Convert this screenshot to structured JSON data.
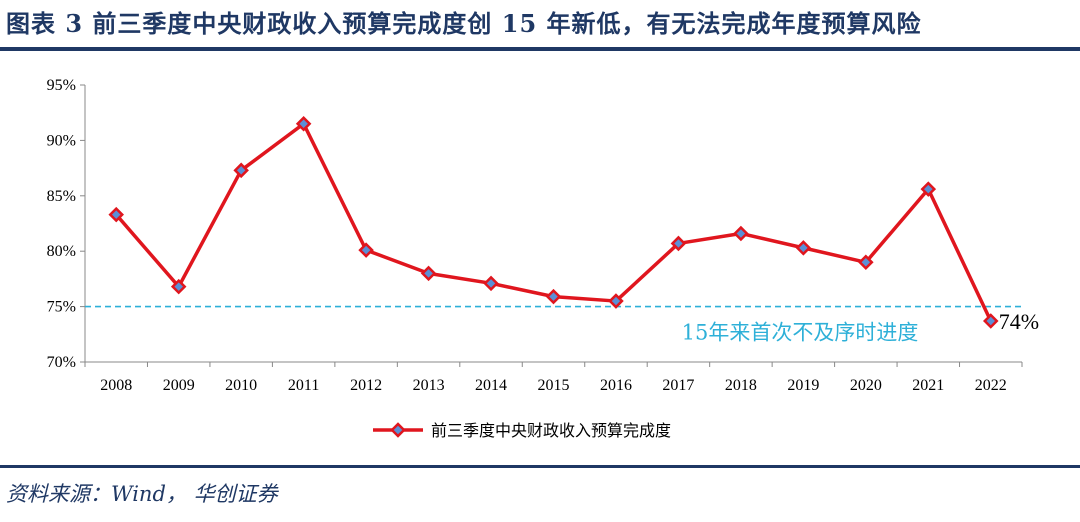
{
  "header": {
    "title": "图表 3   前三季度中央财政收入预算完成度创 15 年新低，有无法完成年度预算风险"
  },
  "footer": {
    "source": "资料来源：Wind， 华创证券"
  },
  "chart_data": {
    "type": "line",
    "categories": [
      "2008",
      "2009",
      "2010",
      "2011",
      "2012",
      "2013",
      "2014",
      "2015",
      "2016",
      "2017",
      "2018",
      "2019",
      "2020",
      "2021",
      "2022"
    ],
    "series": [
      {
        "name": "前三季度中央财政收入预算完成度",
        "values": [
          83.3,
          76.8,
          87.3,
          91.5,
          80.1,
          78.0,
          77.1,
          75.9,
          75.5,
          80.7,
          81.6,
          80.3,
          79.0,
          85.6,
          73.7
        ],
        "color": "#e0161e",
        "marker_color": "#5b8fd6"
      }
    ],
    "y_ticks": [
      "70%",
      "75%",
      "80%",
      "85%",
      "90%",
      "95%"
    ],
    "ylim": [
      70,
      95
    ],
    "reference_line": {
      "value": 75,
      "color": "#2eb0d8",
      "label": "15年来首次不及序时进度"
    },
    "data_label": {
      "index": 14,
      "text": "74%"
    },
    "legend_position": "bottom-center",
    "grid": false
  }
}
